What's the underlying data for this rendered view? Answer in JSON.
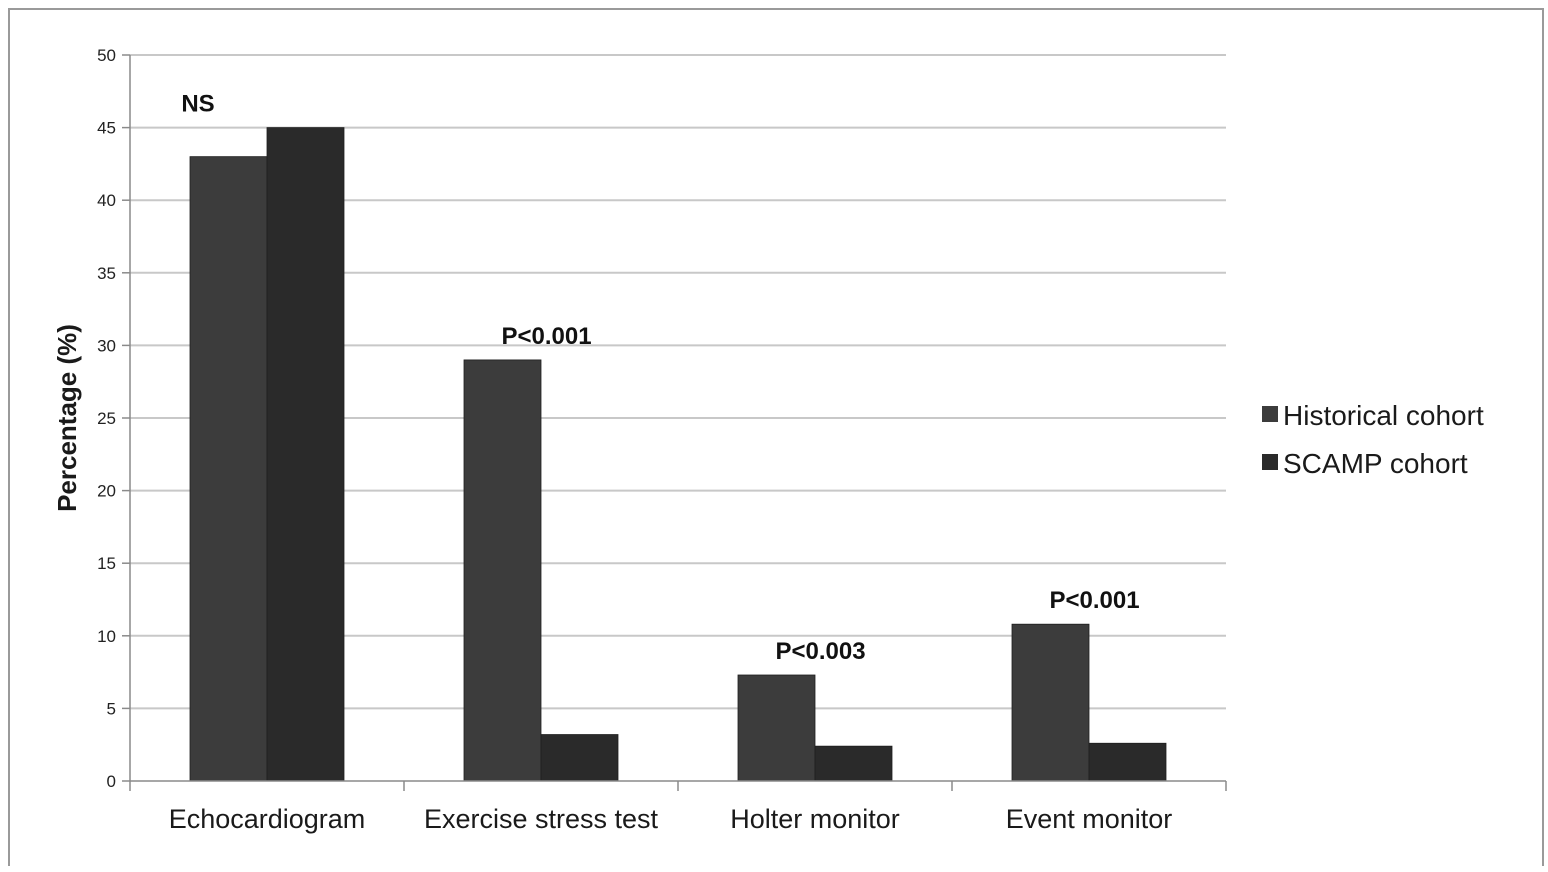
{
  "chart_data": {
    "type": "bar",
    "ylabel": "Percentage (%)",
    "ylim": [
      0,
      50
    ],
    "yticks": [
      0,
      5,
      10,
      15,
      20,
      25,
      30,
      35,
      40,
      45,
      50
    ],
    "grid": true,
    "legend_position": "right",
    "categories": [
      "Echocardiogram",
      "Exercise stress test",
      "Holter monitor",
      "Event monitor"
    ],
    "series": [
      {
        "name": "Historical cohort",
        "values": [
          43,
          29,
          7.3,
          10.8
        ],
        "color": "#3c3c3c"
      },
      {
        "name": "SCAMP cohort",
        "values": [
          45,
          3.2,
          2.4,
          2.6
        ],
        "color": "#2a2a2a"
      }
    ],
    "annotations": [
      "NS",
      "P<0.001",
      "P<0.003",
      "P<0.001"
    ]
  }
}
